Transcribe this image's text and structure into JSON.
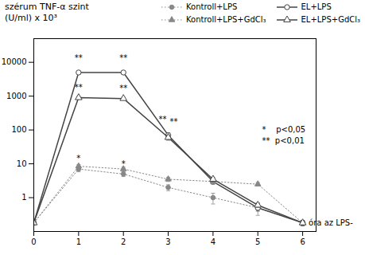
{
  "chart_data": {
    "type": "line",
    "x": [
      0,
      1,
      2,
      3,
      4,
      5,
      6
    ],
    "xlim": [
      0,
      6.3
    ],
    "xticks": [
      0,
      1,
      2,
      3,
      4,
      5,
      6
    ],
    "ylim": [
      0.1,
      50000
    ],
    "yticks": [
      1,
      10,
      100,
      1000,
      10000
    ],
    "log": "y",
    "grid": false,
    "legend": "upper right",
    "ylabel": "szérum TNF-α szint\n(U/ml) x 10³",
    "series": [
      {
        "name": "Kontroll+LPS",
        "color": "#888888",
        "marker": "circle",
        "line_style": "dotted",
        "values": [
          0.18,
          7.0,
          5.0,
          2.0,
          1.0,
          0.5,
          0.18
        ],
        "yerr": [
          0,
          1.2,
          0.8,
          0.4,
          0.35,
          0.2,
          0.03
        ]
      },
      {
        "name": "EL+LPS",
        "color": "#444444",
        "marker": "circle-open",
        "line_style": "solid",
        "values": [
          0.18,
          5000,
          5000,
          70,
          3.0,
          0.5,
          0.18
        ],
        "yerr": [
          0,
          400,
          400,
          12,
          0.5,
          0.1,
          0.03
        ]
      },
      {
        "name": "Kontroll+LPS+GdCl₃",
        "color": "#888888",
        "marker": "triangle",
        "line_style": "dotted",
        "values": [
          0.18,
          8.5,
          7.0,
          3.5,
          3.0,
          2.5,
          0.18
        ],
        "yerr": [
          0,
          1.0,
          1.0,
          0.5,
          0.4,
          0.3,
          0.03
        ]
      },
      {
        "name": "EL+LPS+GdCl₃",
        "color": "#444444",
        "marker": "triangle-open",
        "line_style": "solid",
        "values": [
          0.18,
          900,
          850,
          60,
          3.5,
          0.6,
          0.18
        ],
        "yerr": [
          0,
          80,
          70,
          10,
          0.5,
          0.08,
          0.03
        ]
      }
    ],
    "annotations": [
      {
        "text": "óra az LPS-",
        "x": 6.08,
        "y": 0.18
      },
      {
        "text": "**",
        "x": 1,
        "y": 11000
      },
      {
        "text": "**",
        "x": 2,
        "y": 11000
      },
      {
        "text": "**",
        "x": 1,
        "y": 1530
      },
      {
        "text": "**",
        "x": 2,
        "y": 1445
      },
      {
        "text": "*",
        "x": 1,
        "y": 11.9
      },
      {
        "text": "*",
        "x": 2,
        "y": 8.5
      },
      {
        "text": "**",
        "x": 3,
        "y": 175
      },
      {
        "text": "**",
        "x": 3,
        "y": 150
      },
      {
        "text": "*    p<0,05"
      },
      {
        "text": "**  p<0,01"
      }
    ]
  }
}
